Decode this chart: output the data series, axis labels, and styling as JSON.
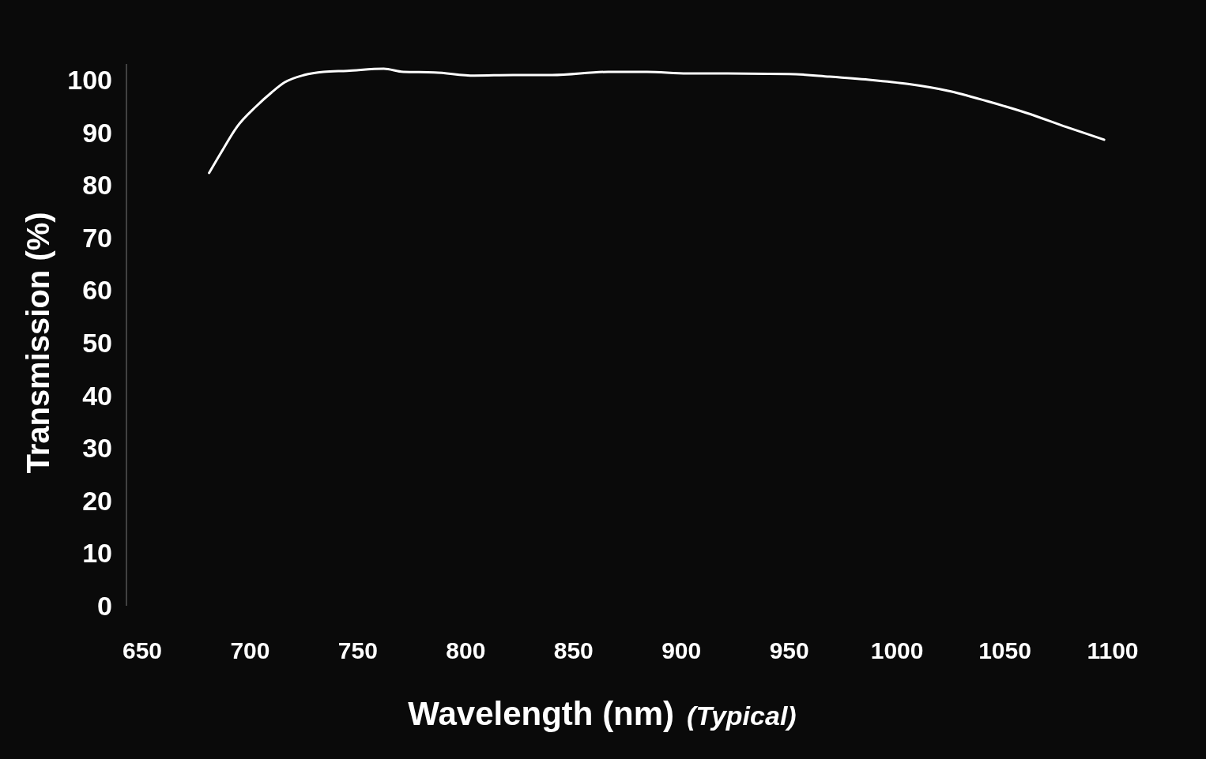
{
  "chart_data": {
    "type": "line",
    "xlabel": "Wavelength (nm)",
    "ylabel": "Transmission (%)",
    "annotations": [
      "(Typical)"
    ],
    "xlim": [
      650,
      1100
    ],
    "ylim": [
      0,
      103
    ],
    "xticks": [
      650,
      700,
      750,
      800,
      850,
      900,
      950,
      1000,
      1050,
      1100
    ],
    "yticks": [
      0,
      10,
      20,
      30,
      40,
      50,
      60,
      70,
      80,
      90,
      100
    ],
    "series": [
      {
        "color": "#ffffff",
        "x": [
          681,
          686.6,
          694,
          702.7,
          710,
          716,
          725,
          734,
          745,
          762,
          771,
          785.5,
          804,
          822,
          840,
          866,
          884,
          902.7,
          921,
          950,
          968.7,
          987,
          1005,
          1023.6,
          1042,
          1060,
          1078.6,
          1096
        ],
        "values": [
          82.3,
          86.2,
          91.1,
          94.9,
          97.6,
          99.5,
          100.9,
          101.5,
          101.7,
          102.1,
          101.5,
          101.4,
          100.8,
          100.9,
          100.9,
          101.5,
          101.5,
          101.2,
          101.2,
          101.1,
          100.6,
          100,
          99.2,
          97.9,
          95.9,
          93.7,
          91,
          88.6
        ]
      }
    ]
  }
}
